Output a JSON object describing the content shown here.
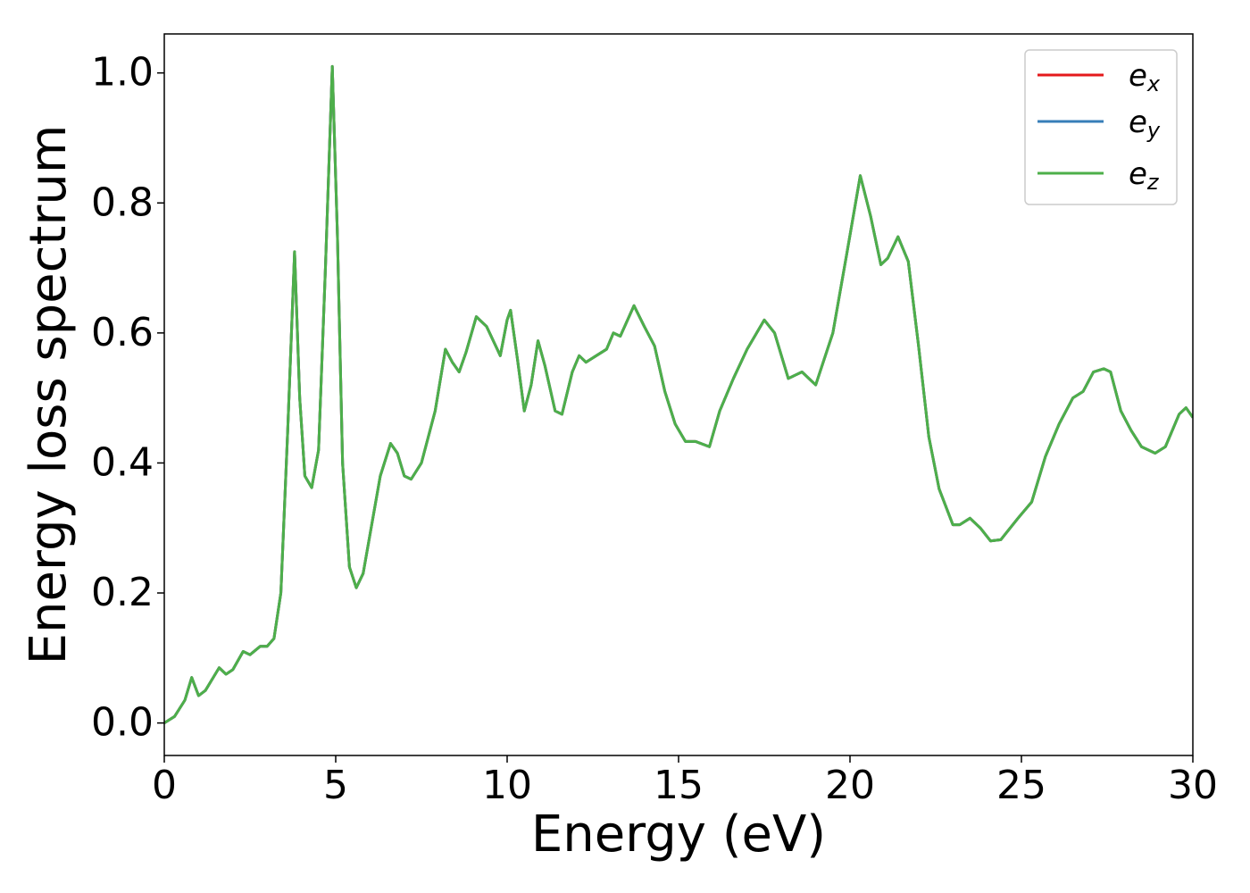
{
  "chart_data": {
    "type": "line",
    "xlabel": "Energy (eV)",
    "ylabel": "Energy loss spectrum",
    "x": [
      0,
      0.3,
      0.6,
      0.8,
      1.0,
      1.2,
      1.6,
      1.8,
      2.0,
      2.3,
      2.5,
      2.8,
      3.0,
      3.2,
      3.4,
      3.6,
      3.8,
      3.95,
      4.1,
      4.3,
      4.5,
      4.7,
      4.9,
      5.05,
      5.2,
      5.4,
      5.6,
      5.8,
      6.0,
      6.3,
      6.6,
      6.8,
      7.0,
      7.2,
      7.5,
      7.9,
      8.2,
      8.4,
      8.6,
      8.8,
      9.1,
      9.4,
      9.8,
      10.0,
      10.1,
      10.3,
      10.5,
      10.7,
      10.9,
      11.1,
      11.4,
      11.6,
      11.9,
      12.1,
      12.3,
      12.6,
      12.9,
      13.1,
      13.3,
      13.7,
      14.0,
      14.3,
      14.6,
      14.9,
      15.2,
      15.5,
      15.9,
      16.2,
      16.6,
      17.0,
      17.5,
      17.8,
      18.2,
      18.6,
      19.0,
      19.5,
      19.9,
      20.3,
      20.6,
      20.9,
      21.1,
      21.4,
      21.7,
      22.0,
      22.3,
      22.6,
      23.0,
      23.2,
      23.5,
      23.8,
      24.1,
      24.4,
      24.9,
      25.3,
      25.7,
      26.1,
      26.5,
      26.8,
      27.1,
      27.4,
      27.6,
      27.9,
      28.2,
      28.5,
      28.9,
      29.2,
      29.6,
      29.8,
      30.0
    ],
    "series": [
      {
        "name": "ex",
        "color": "#e41a1c",
        "values": [
          0,
          0.01,
          0.035,
          0.07,
          0.042,
          0.05,
          0.085,
          0.075,
          0.082,
          0.11,
          0.105,
          0.118,
          0.118,
          0.13,
          0.2,
          0.45,
          0.725,
          0.5,
          0.38,
          0.362,
          0.42,
          0.7,
          1.01,
          0.75,
          0.4,
          0.24,
          0.208,
          0.23,
          0.29,
          0.38,
          0.43,
          0.415,
          0.38,
          0.375,
          0.4,
          0.48,
          0.575,
          0.555,
          0.54,
          0.57,
          0.625,
          0.61,
          0.565,
          0.62,
          0.635,
          0.56,
          0.48,
          0.52,
          0.588,
          0.55,
          0.48,
          0.475,
          0.54,
          0.565,
          0.555,
          0.565,
          0.575,
          0.6,
          0.595,
          0.642,
          0.61,
          0.58,
          0.51,
          0.46,
          0.433,
          0.433,
          0.425,
          0.48,
          0.53,
          0.575,
          0.62,
          0.6,
          0.53,
          0.54,
          0.52,
          0.6,
          0.72,
          0.842,
          0.78,
          0.705,
          0.715,
          0.748,
          0.71,
          0.58,
          0.44,
          0.36,
          0.305,
          0.305,
          0.315,
          0.3,
          0.28,
          0.282,
          0.315,
          0.34,
          0.41,
          0.46,
          0.5,
          0.51,
          0.54,
          0.545,
          0.54,
          0.48,
          0.45,
          0.425,
          0.415,
          0.425,
          0.475,
          0.485,
          0.47
        ]
      },
      {
        "name": "ey",
        "color": "#377eb8",
        "values": [
          0,
          0.01,
          0.035,
          0.07,
          0.042,
          0.05,
          0.085,
          0.075,
          0.082,
          0.11,
          0.105,
          0.118,
          0.118,
          0.13,
          0.2,
          0.45,
          0.725,
          0.5,
          0.38,
          0.362,
          0.42,
          0.7,
          1.01,
          0.75,
          0.4,
          0.24,
          0.208,
          0.23,
          0.29,
          0.38,
          0.43,
          0.415,
          0.38,
          0.375,
          0.4,
          0.48,
          0.575,
          0.555,
          0.54,
          0.57,
          0.625,
          0.61,
          0.565,
          0.62,
          0.635,
          0.56,
          0.48,
          0.52,
          0.588,
          0.55,
          0.48,
          0.475,
          0.54,
          0.565,
          0.555,
          0.565,
          0.575,
          0.6,
          0.595,
          0.642,
          0.61,
          0.58,
          0.51,
          0.46,
          0.433,
          0.433,
          0.425,
          0.48,
          0.53,
          0.575,
          0.62,
          0.6,
          0.53,
          0.54,
          0.52,
          0.6,
          0.72,
          0.842,
          0.78,
          0.705,
          0.715,
          0.748,
          0.71,
          0.58,
          0.44,
          0.36,
          0.305,
          0.305,
          0.315,
          0.3,
          0.28,
          0.282,
          0.315,
          0.34,
          0.41,
          0.46,
          0.5,
          0.51,
          0.54,
          0.545,
          0.54,
          0.48,
          0.45,
          0.425,
          0.415,
          0.425,
          0.475,
          0.485,
          0.47
        ]
      },
      {
        "name": "ez",
        "color": "#4daf4a",
        "values": [
          0,
          0.01,
          0.035,
          0.07,
          0.042,
          0.05,
          0.085,
          0.075,
          0.082,
          0.11,
          0.105,
          0.118,
          0.118,
          0.13,
          0.2,
          0.45,
          0.725,
          0.5,
          0.38,
          0.362,
          0.42,
          0.7,
          1.01,
          0.75,
          0.4,
          0.24,
          0.208,
          0.23,
          0.29,
          0.38,
          0.43,
          0.415,
          0.38,
          0.375,
          0.4,
          0.48,
          0.575,
          0.555,
          0.54,
          0.57,
          0.625,
          0.61,
          0.565,
          0.62,
          0.635,
          0.56,
          0.48,
          0.52,
          0.588,
          0.55,
          0.48,
          0.475,
          0.54,
          0.565,
          0.555,
          0.565,
          0.575,
          0.6,
          0.595,
          0.642,
          0.61,
          0.58,
          0.51,
          0.46,
          0.433,
          0.433,
          0.425,
          0.48,
          0.53,
          0.575,
          0.62,
          0.6,
          0.53,
          0.54,
          0.52,
          0.6,
          0.72,
          0.842,
          0.78,
          0.705,
          0.715,
          0.748,
          0.71,
          0.58,
          0.44,
          0.36,
          0.305,
          0.305,
          0.315,
          0.3,
          0.28,
          0.282,
          0.315,
          0.34,
          0.41,
          0.46,
          0.5,
          0.51,
          0.54,
          0.545,
          0.54,
          0.48,
          0.45,
          0.425,
          0.415,
          0.425,
          0.475,
          0.485,
          0.47
        ]
      }
    ],
    "xlim": [
      0,
      30
    ],
    "xticks": [
      0,
      5,
      10,
      15,
      20,
      25,
      30
    ],
    "ylim": [
      -0.05,
      1.06
    ],
    "yticks": [
      {
        "value": 0,
        "label": "0.0"
      },
      0.2,
      0.4,
      0.6,
      0.8,
      {
        "value": 1,
        "label": "1.0"
      }
    ],
    "legend": "upper right",
    "grid": false
  }
}
